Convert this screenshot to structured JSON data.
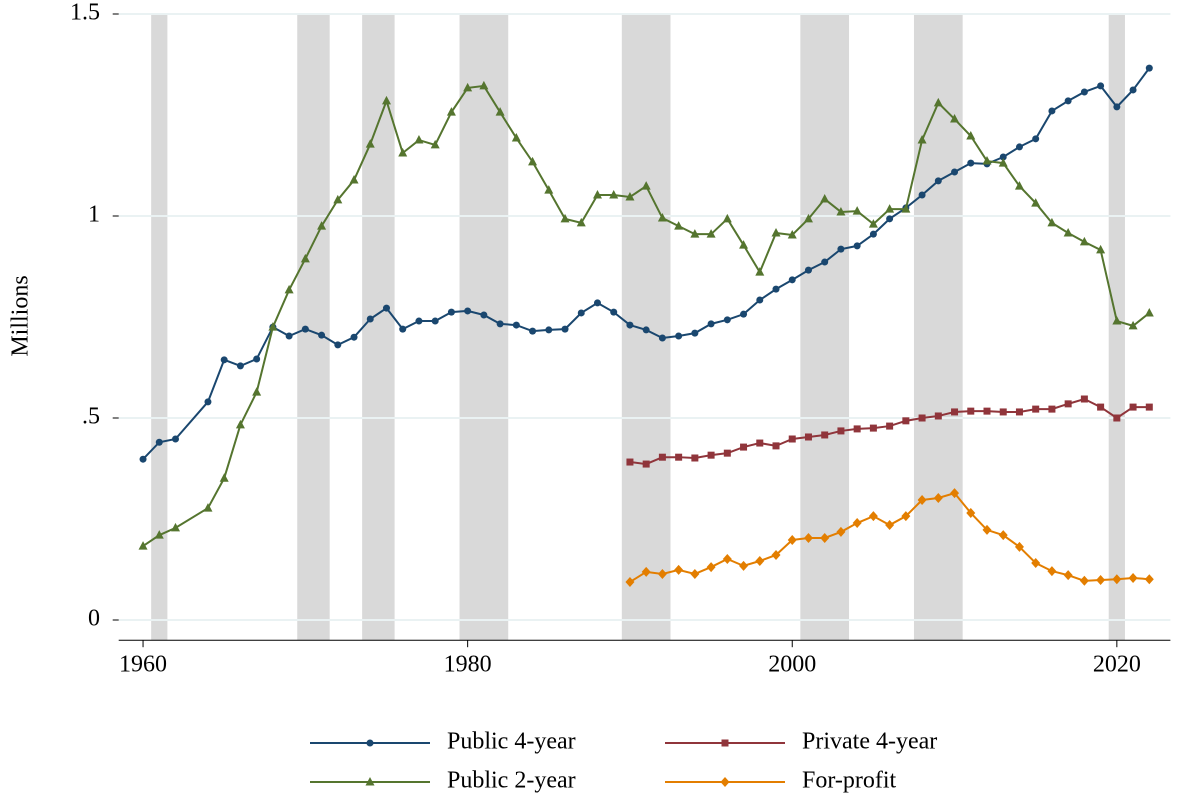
{
  "chart_data": {
    "type": "line",
    "y_label": "Millions",
    "xlim": [
      1958.5,
      2023.3
    ],
    "ylim": [
      -0.05,
      1.5
    ],
    "xticks": [
      1960,
      1980,
      2000,
      2020
    ],
    "yticks": [
      0,
      {
        "value": 0.5,
        "label": ".5"
      },
      1,
      1.5
    ],
    "grid": true,
    "legend_position": "bottom",
    "shaded_periods": [
      [
        1960.5,
        1961.5
      ],
      [
        1969.5,
        1971.5
      ],
      [
        1973.5,
        1975.5
      ],
      [
        1979.5,
        1982.5
      ],
      [
        1989.5,
        1992.5
      ],
      [
        2000.5,
        2003.5
      ],
      [
        2007.5,
        2010.5
      ],
      [
        2019.5,
        2020.5
      ]
    ],
    "shade_color": "#d9d9d9",
    "series": [
      {
        "name": "Public 4-year",
        "color": "#1a476f",
        "marker": "circle",
        "x": [
          1960,
          1961,
          1962,
          1964,
          1965,
          1966,
          1967,
          1968,
          1969,
          1970,
          1971,
          1972,
          1973,
          1974,
          1975,
          1976,
          1977,
          1978,
          1979,
          1980,
          1981,
          1982,
          1983,
          1984,
          1985,
          1986,
          1987,
          1988,
          1989,
          1990,
          1991,
          1992,
          1993,
          1994,
          1995,
          1996,
          1997,
          1998,
          1999,
          2000,
          2001,
          2002,
          2003,
          2004,
          2005,
          2006,
          2007,
          2008,
          2009,
          2010,
          2011,
          2012,
          2013,
          2014,
          2015,
          2016,
          2017,
          2018,
          2019,
          2020,
          2021,
          2022
        ],
        "values": [
          0.398,
          0.44,
          0.448,
          0.54,
          0.644,
          0.629,
          0.646,
          0.725,
          0.703,
          0.72,
          0.705,
          0.681,
          0.7,
          0.745,
          0.772,
          0.72,
          0.74,
          0.74,
          0.762,
          0.765,
          0.755,
          0.733,
          0.73,
          0.715,
          0.718,
          0.72,
          0.76,
          0.785,
          0.762,
          0.73,
          0.718,
          0.698,
          0.703,
          0.71,
          0.733,
          0.743,
          0.757,
          0.792,
          0.819,
          0.842,
          0.866,
          0.886,
          0.918,
          0.926,
          0.955,
          0.993,
          1.02,
          1.052,
          1.087,
          1.109,
          1.131,
          1.129,
          1.146,
          1.171,
          1.191,
          1.26,
          1.285,
          1.307,
          1.322,
          1.27,
          1.312,
          1.366
        ]
      },
      {
        "name": "Private 4-year",
        "color": "#90353b",
        "marker": "square",
        "x": [
          1990,
          1991,
          1992,
          1993,
          1994,
          1995,
          1996,
          1997,
          1998,
          1999,
          2000,
          2001,
          2002,
          2003,
          2004,
          2005,
          2006,
          2007,
          2008,
          2009,
          2010,
          2011,
          2012,
          2013,
          2014,
          2015,
          2016,
          2017,
          2018,
          2019,
          2020,
          2021,
          2022
        ],
        "values": [
          0.391,
          0.386,
          0.403,
          0.403,
          0.401,
          0.408,
          0.413,
          0.428,
          0.438,
          0.431,
          0.448,
          0.453,
          0.458,
          0.468,
          0.473,
          0.475,
          0.48,
          0.493,
          0.5,
          0.505,
          0.515,
          0.517,
          0.517,
          0.515,
          0.515,
          0.522,
          0.522,
          0.535,
          0.547,
          0.527,
          0.5,
          0.527,
          0.527
        ]
      },
      {
        "name": "Public 2-year",
        "color": "#55752f",
        "marker": "triangle",
        "x": [
          1960,
          1961,
          1962,
          1964,
          1965,
          1966,
          1967,
          1968,
          1969,
          1970,
          1971,
          1972,
          1973,
          1974,
          1975,
          1976,
          1977,
          1978,
          1979,
          1980,
          1981,
          1982,
          1983,
          1984,
          1985,
          1986,
          1987,
          1988,
          1989,
          1990,
          1991,
          1992,
          1993,
          1994,
          1995,
          1996,
          1997,
          1998,
          1999,
          2000,
          2001,
          2002,
          2003,
          2004,
          2005,
          2006,
          2007,
          2008,
          2009,
          2010,
          2011,
          2012,
          2013,
          2014,
          2015,
          2016,
          2017,
          2018,
          2019,
          2020,
          2021,
          2022
        ],
        "values": [
          0.183,
          0.21,
          0.228,
          0.277,
          0.351,
          0.483,
          0.564,
          0.725,
          0.817,
          0.894,
          0.975,
          1.04,
          1.089,
          1.178,
          1.285,
          1.156,
          1.188,
          1.176,
          1.257,
          1.317,
          1.322,
          1.257,
          1.193,
          1.134,
          1.064,
          0.993,
          0.983,
          1.052,
          1.052,
          1.047,
          1.074,
          0.995,
          0.975,
          0.955,
          0.955,
          0.993,
          0.928,
          0.861,
          0.958,
          0.953,
          0.993,
          1.042,
          1.01,
          1.012,
          0.98,
          1.017,
          1.017,
          1.188,
          1.28,
          1.24,
          1.198,
          1.136,
          1.131,
          1.074,
          1.032,
          0.983,
          0.958,
          0.936,
          0.916,
          0.74,
          0.728,
          0.76
        ]
      },
      {
        "name": "For-profit",
        "color": "#e37e00",
        "marker": "diamond",
        "x": [
          1990,
          1991,
          1992,
          1993,
          1994,
          1995,
          1996,
          1997,
          1998,
          1999,
          2000,
          2001,
          2002,
          2003,
          2004,
          2005,
          2006,
          2007,
          2008,
          2009,
          2010,
          2011,
          2012,
          2013,
          2014,
          2015,
          2016,
          2017,
          2018,
          2019,
          2020,
          2021,
          2022
        ],
        "values": [
          0.094,
          0.119,
          0.114,
          0.124,
          0.114,
          0.131,
          0.151,
          0.134,
          0.146,
          0.161,
          0.198,
          0.203,
          0.203,
          0.218,
          0.24,
          0.257,
          0.235,
          0.257,
          0.297,
          0.302,
          0.314,
          0.265,
          0.223,
          0.21,
          0.181,
          0.141,
          0.121,
          0.111,
          0.097,
          0.099,
          0.101,
          0.104,
          0.101
        ]
      }
    ]
  }
}
